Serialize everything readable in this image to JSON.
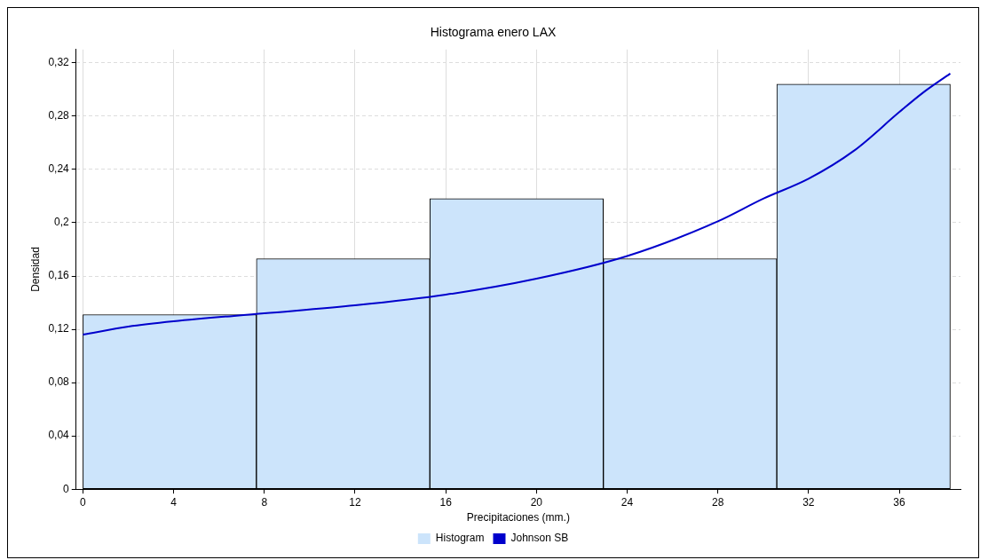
{
  "chart_data": {
    "type": "histogram",
    "title": "Histograma enero LAX",
    "xlabel": "Precipitaciones (mm.)",
    "ylabel": "Densidad",
    "bins": [
      0,
      7.65,
      15.3,
      22.95,
      30.6,
      38.25
    ],
    "series": [
      {
        "name": "Histogram",
        "type": "histogram",
        "color": "#cce4fb",
        "values": [
          0.131,
          0.173,
          0.218,
          0.173,
          0.304
        ]
      },
      {
        "name": "Johnson SB",
        "type": "line",
        "color": "#0000cc",
        "x": [
          0,
          2,
          4,
          8,
          12,
          16,
          20,
          24,
          28,
          30,
          32,
          34,
          36,
          37,
          38.25
        ],
        "values": [
          0.116,
          0.122,
          0.126,
          0.132,
          0.138,
          0.146,
          0.158,
          0.175,
          0.201,
          0.218,
          0.233,
          0.254,
          0.283,
          0.297,
          0.312
        ]
      }
    ],
    "xlim": [
      -0.3,
      38.7
    ],
    "xticks": [
      0,
      4,
      8,
      12,
      16,
      20,
      24,
      28,
      32,
      36
    ],
    "ylim": [
      0,
      0.33
    ],
    "yticks": [
      0,
      {
        "value": 0.04,
        "label": "0,04"
      },
      {
        "value": 0.08,
        "label": "0,08"
      },
      {
        "value": 0.12,
        "label": "0,12"
      },
      {
        "value": 0.16,
        "label": "0,16"
      },
      {
        "value": 0.2,
        "label": "0,2"
      },
      {
        "value": 0.24,
        "label": "0,24"
      },
      {
        "value": 0.28,
        "label": "0,28"
      },
      {
        "value": 0.32,
        "label": "0,32"
      }
    ],
    "grid": true,
    "legend": "bottom",
    "marker": "none",
    "line_style": "solid"
  }
}
